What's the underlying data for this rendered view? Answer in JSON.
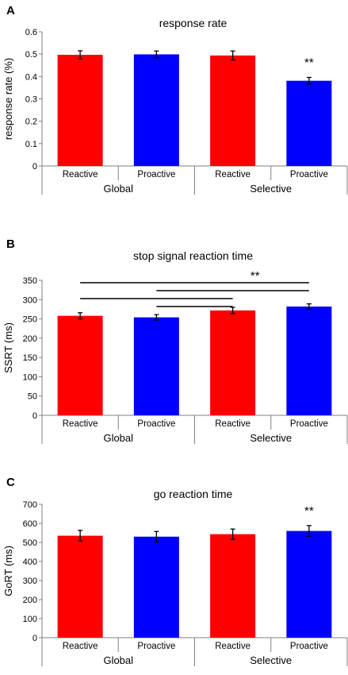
{
  "chart_data": [
    {
      "panel_letter": "A",
      "type": "bar",
      "title": "response rate",
      "ylabel": "response rate (%)",
      "ylim": [
        0,
        0.6
      ],
      "yticks": [
        "0",
        "0.1",
        "0.2",
        "0.3",
        "0.4",
        "0.5",
        "0.6"
      ],
      "categories": [
        "Reactive",
        "Proactive",
        "Reactive",
        "Proactive"
      ],
      "groups": [
        "Global",
        "Selective"
      ],
      "values": [
        0.497,
        0.499,
        0.494,
        0.381
      ],
      "errors": [
        0.018,
        0.015,
        0.02,
        0.015
      ],
      "colors": [
        "#ff0000",
        "#0000ff",
        "#ff0000",
        "#0000ff"
      ],
      "annotations": [
        {
          "text": "**",
          "bar": 3
        }
      ],
      "significance_lines": []
    },
    {
      "panel_letter": "B",
      "type": "bar",
      "title": "stop signal reaction time",
      "ylabel": "SSRT (ms)",
      "ylim": [
        0,
        350
      ],
      "yticks": [
        "0",
        "50",
        "100",
        "150",
        "200",
        "250",
        "300",
        "350"
      ],
      "categories": [
        "Reactive",
        "Proactive",
        "Reactive",
        "Proactive"
      ],
      "groups": [
        "Global",
        "Selective"
      ],
      "values": [
        258,
        254,
        272,
        282
      ],
      "errors": [
        8,
        7,
        8,
        7
      ],
      "colors": [
        "#ff0000",
        "#0000ff",
        "#ff0000",
        "#0000ff"
      ],
      "annotations": [
        {
          "text": "**",
          "between": [
            2,
            3
          ],
          "above_lines": true
        }
      ],
      "significance_lines": [
        {
          "from": 0,
          "to": 3
        },
        {
          "from": 1,
          "to": 3
        },
        {
          "from": 0,
          "to": 2
        },
        {
          "from": 1,
          "to": 2
        }
      ]
    },
    {
      "panel_letter": "C",
      "type": "bar",
      "title": "go reaction time",
      "ylabel": "GoRT (ms)",
      "ylim": [
        0,
        700
      ],
      "yticks": [
        "0",
        "100",
        "200",
        "300",
        "400",
        "500",
        "600",
        "700"
      ],
      "categories": [
        "Reactive",
        "Proactive",
        "Reactive",
        "Proactive"
      ],
      "groups": [
        "Global",
        "Selective"
      ],
      "values": [
        535,
        530,
        543,
        560
      ],
      "errors": [
        28,
        27,
        27,
        28
      ],
      "colors": [
        "#ff0000",
        "#0000ff",
        "#ff0000",
        "#0000ff"
      ],
      "annotations": [
        {
          "text": "**",
          "bar": 3
        }
      ],
      "significance_lines": []
    }
  ]
}
